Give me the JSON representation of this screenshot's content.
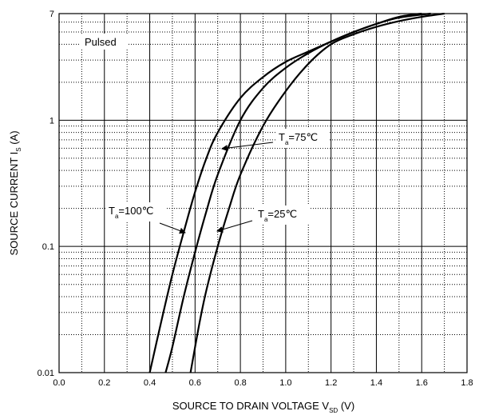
{
  "chart_data": {
    "type": "line",
    "title": "",
    "xlabel": {
      "main": "SOURCE TO DRAIN VOLTAGE",
      "symbol": "V",
      "sub": "SD",
      "unit": "(V)"
    },
    "ylabel": {
      "main": "SOURCE CURRENT",
      "symbol": "I",
      "sub": "S",
      "unit": "(A)"
    },
    "xlim": [
      0,
      1.8
    ],
    "ylim": [
      0.01,
      7
    ],
    "y_scale": "log",
    "grid": true,
    "x_ticks": [
      "0.0",
      "0.2",
      "0.4",
      "0.6",
      "0.8",
      "1.0",
      "1.2",
      "1.4",
      "1.6",
      "1.8"
    ],
    "y_ticks": [
      {
        "value": 0.01,
        "label": "0.01"
      },
      {
        "value": 0.1,
        "label": "0.1"
      },
      {
        "value": 1,
        "label": "1"
      },
      {
        "value": 7,
        "label": "7"
      }
    ],
    "note": "Pulsed",
    "series": [
      {
        "label": {
          "symbol": "T",
          "sub": "a",
          "value": "=100℃"
        },
        "x": [
          0.4,
          0.45,
          0.5,
          0.55,
          0.6,
          0.65,
          0.7,
          0.8,
          0.9,
          1.0,
          1.1,
          1.2,
          1.3,
          1.4,
          1.5,
          1.6
        ],
        "y": [
          0.01,
          0.025,
          0.06,
          0.13,
          0.27,
          0.5,
          0.8,
          1.5,
          2.2,
          2.9,
          3.5,
          4.2,
          5.0,
          5.8,
          6.6,
          7.0
        ]
      },
      {
        "label": {
          "symbol": "T",
          "sub": "a",
          "value": "=75℃"
        },
        "x": [
          0.47,
          0.5,
          0.55,
          0.6,
          0.65,
          0.7,
          0.8,
          0.9,
          1.0,
          1.1,
          1.2,
          1.3,
          1.4,
          1.5,
          1.64
        ],
        "y": [
          0.01,
          0.016,
          0.04,
          0.09,
          0.19,
          0.37,
          1.0,
          1.8,
          2.6,
          3.4,
          4.2,
          5.0,
          5.8,
          6.5,
          7.0
        ]
      },
      {
        "label": {
          "symbol": "T",
          "sub": "a",
          "value": "=25℃"
        },
        "x": [
          0.58,
          0.62,
          0.65,
          0.7,
          0.75,
          0.8,
          0.9,
          1.0,
          1.1,
          1.2,
          1.3,
          1.4,
          1.5,
          1.6,
          1.7
        ],
        "y": [
          0.01,
          0.025,
          0.045,
          0.1,
          0.2,
          0.37,
          0.9,
          1.7,
          2.8,
          4.0,
          4.8,
          5.5,
          6.1,
          6.6,
          7.0
        ]
      }
    ]
  }
}
